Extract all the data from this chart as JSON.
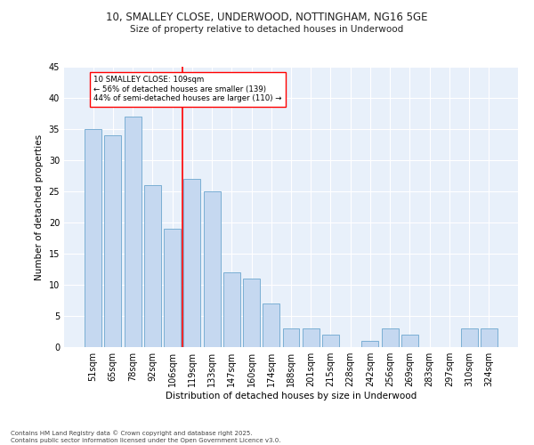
{
  "title_line1": "10, SMALLEY CLOSE, UNDERWOOD, NOTTINGHAM, NG16 5GE",
  "title_line2": "Size of property relative to detached houses in Underwood",
  "xlabel": "Distribution of detached houses by size in Underwood",
  "ylabel": "Number of detached properties",
  "categories": [
    "51sqm",
    "65sqm",
    "78sqm",
    "92sqm",
    "106sqm",
    "119sqm",
    "133sqm",
    "147sqm",
    "160sqm",
    "174sqm",
    "188sqm",
    "201sqm",
    "215sqm",
    "228sqm",
    "242sqm",
    "256sqm",
    "269sqm",
    "283sqm",
    "297sqm",
    "310sqm",
    "324sqm"
  ],
  "values": [
    35,
    34,
    37,
    26,
    19,
    27,
    25,
    12,
    11,
    7,
    3,
    3,
    2,
    0,
    1,
    3,
    2,
    0,
    0,
    3,
    3
  ],
  "bar_color": "#C5D8F0",
  "bar_edge_color": "#7BAFD4",
  "vline_x": 4.5,
  "vline_color": "red",
  "annotation_text": "10 SMALLEY CLOSE: 109sqm\n← 56% of detached houses are smaller (139)\n44% of semi-detached houses are larger (110) →",
  "annotation_box_color": "white",
  "annotation_box_edge_color": "red",
  "ylim": [
    0,
    45
  ],
  "yticks": [
    0,
    5,
    10,
    15,
    20,
    25,
    30,
    35,
    40,
    45
  ],
  "footnote": "Contains HM Land Registry data © Crown copyright and database right 2025.\nContains public sector information licensed under the Open Government Licence v3.0.",
  "background_color": "#FFFFFF",
  "plot_bg_color": "#E8F0FA"
}
